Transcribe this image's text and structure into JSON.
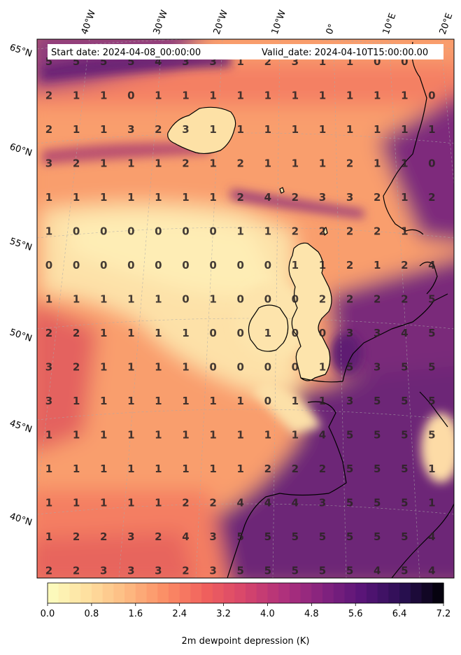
{
  "header": {
    "start_date": "Start date: 2024-04-08_00:00:00",
    "valid_date": "Valid_date: 2024-04-10T15:00:00.00"
  },
  "latitude_labels": [
    "65°N",
    "60°N",
    "55°N",
    "50°N",
    "45°N",
    "40°N"
  ],
  "longitude_labels": [
    "40°W",
    "30°W",
    "20°W",
    "10°W",
    "0°",
    "10°E",
    "20°E"
  ],
  "colorbar": {
    "label": "2m dewpoint depression (K)",
    "ticks": [
      "0.0",
      "0.8",
      "1.6",
      "2.4",
      "3.2",
      "4.0",
      "4.8",
      "5.6",
      "6.4",
      "7.2"
    ],
    "min": 0.0,
    "max": 7.2,
    "colormap": "magma_r",
    "bins": 36
  },
  "grid_values": [
    [
      5,
      5,
      5,
      5,
      4,
      3,
      3,
      1,
      2,
      3,
      1,
      1,
      0,
      0,
      null
    ],
    [
      2,
      1,
      1,
      0,
      1,
      1,
      1,
      1,
      1,
      1,
      1,
      1,
      1,
      1,
      0
    ],
    [
      2,
      1,
      1,
      3,
      2,
      3,
      1,
      1,
      1,
      1,
      1,
      1,
      1,
      1,
      1
    ],
    [
      3,
      2,
      1,
      1,
      1,
      2,
      1,
      2,
      1,
      1,
      1,
      2,
      1,
      1,
      0
    ],
    [
      1,
      1,
      1,
      1,
      1,
      1,
      1,
      2,
      4,
      2,
      3,
      3,
      2,
      1,
      2
    ],
    [
      1,
      0,
      0,
      0,
      0,
      0,
      0,
      1,
      1,
      2,
      2,
      2,
      2,
      1,
      null
    ],
    [
      0,
      0,
      0,
      0,
      0,
      0,
      0,
      0,
      0,
      1,
      1,
      2,
      1,
      2,
      4
    ],
    [
      1,
      1,
      1,
      1,
      1,
      0,
      1,
      0,
      0,
      0,
      2,
      2,
      2,
      2,
      5
    ],
    [
      2,
      2,
      1,
      1,
      1,
      1,
      0,
      0,
      1,
      0,
      0,
      3,
      3,
      4,
      5
    ],
    [
      3,
      2,
      1,
      1,
      1,
      1,
      0,
      0,
      0,
      0,
      1,
      5,
      3,
      5,
      5
    ],
    [
      3,
      1,
      1,
      1,
      1,
      1,
      1,
      1,
      0,
      1,
      1,
      3,
      5,
      5,
      5
    ],
    [
      1,
      1,
      1,
      1,
      1,
      1,
      1,
      1,
      1,
      1,
      4,
      5,
      5,
      5,
      5
    ],
    [
      1,
      1,
      1,
      1,
      1,
      1,
      1,
      1,
      2,
      2,
      2,
      5,
      5,
      5,
      1
    ],
    [
      1,
      1,
      1,
      1,
      1,
      2,
      2,
      4,
      4,
      4,
      3,
      5,
      5,
      5,
      1
    ],
    [
      1,
      2,
      2,
      3,
      2,
      4,
      3,
      5,
      5,
      5,
      5,
      5,
      5,
      5,
      4
    ],
    [
      2,
      2,
      3,
      3,
      3,
      2,
      3,
      5,
      5,
      5,
      5,
      5,
      4,
      5,
      4
    ]
  ]
}
